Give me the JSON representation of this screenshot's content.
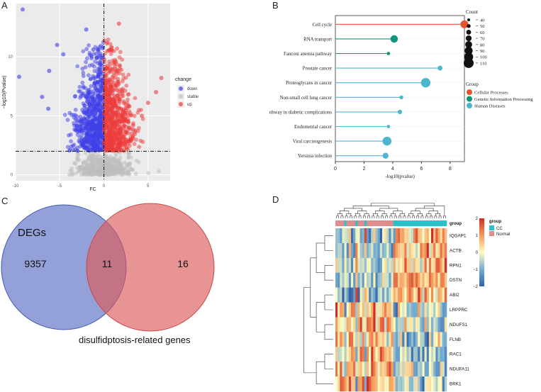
{
  "panel_labels": {
    "a": "A",
    "b": "B",
    "c": "C",
    "d": "D"
  },
  "chart_data": [
    {
      "type": "scatter",
      "name": "volcano",
      "xlabel": "FC",
      "ylabel": "−log10(Pvalue)",
      "xlim": [
        -10,
        7.5
      ],
      "ylim": [
        -0.5,
        14.5
      ],
      "xticks": [
        -10,
        -5,
        0,
        5
      ],
      "yticks": [
        0,
        5,
        10
      ],
      "xtick_labels": [
        "-10",
        "-5",
        "0",
        "5"
      ],
      "ytick_labels": [
        "0",
        "5",
        "10"
      ],
      "threshold_y": 2,
      "threshold_x": 0,
      "legend_title": "change",
      "series": [
        {
          "name": "down",
          "color": "#3f3fe8"
        },
        {
          "name": "stable",
          "color": "#bdbdbd"
        },
        {
          "name": "up",
          "color": "#ee3b3b"
        }
      ],
      "outliers": [
        {
          "x": -9.2,
          "y": 14.0,
          "series": "down"
        },
        {
          "x": -9.6,
          "y": 8.3,
          "series": "down"
        },
        {
          "x": -5.3,
          "y": 11.0,
          "series": "down"
        },
        {
          "x": -4.6,
          "y": 10.2,
          "series": "down"
        },
        {
          "x": -6.2,
          "y": 8.8,
          "series": "down"
        },
        {
          "x": -2.0,
          "y": 12.3,
          "series": "down"
        },
        {
          "x": -1.2,
          "y": 10.6,
          "series": "down"
        },
        {
          "x": -7.0,
          "y": 6.6,
          "series": "down"
        },
        {
          "x": -6.3,
          "y": 5.6,
          "series": "down"
        },
        {
          "x": 1.7,
          "y": 12.8,
          "series": "up"
        },
        {
          "x": 6.5,
          "y": 8.2,
          "series": "up"
        },
        {
          "x": 5.9,
          "y": 7.0,
          "series": "up"
        },
        {
          "x": 5.0,
          "y": 6.1,
          "series": "up"
        },
        {
          "x": 4.3,
          "y": 5.0,
          "series": "up"
        },
        {
          "x": 3.3,
          "y": 4.2,
          "series": "up"
        }
      ]
    },
    {
      "type": "lollipop",
      "name": "kegg",
      "categories": [
        "Cell cycle",
        "RNA transport",
        "Fanconi anemia pathway",
        "Prostate cancer",
        "Proteoglycans in cancer",
        "Non-small cell lung cancer",
        "AGE-RAGE signaling pathway in diabetic complications",
        "Endometrial cancer",
        "Viral carcinogenesis",
        "Yersinia infection"
      ],
      "values": [
        9.0,
        4.1,
        3.7,
        7.3,
        6.3,
        4.6,
        4.5,
        3.7,
        3.6,
        3.5
      ],
      "counts": [
        90,
        85,
        45,
        60,
        105,
        50,
        55,
        45,
        100,
        70
      ],
      "groups": [
        "Cellular Processes",
        "Genetic Information Processing",
        "Genetic Information Processing",
        "Human Diseases",
        "Human Diseases",
        "Human Diseases",
        "Human Diseases",
        "Human Diseases",
        "Human Diseases",
        "Human Diseases"
      ],
      "xlabel": "-log10(pvalue)",
      "xlim": [
        0,
        9
      ],
      "xticks": [
        0,
        2,
        4,
        6,
        8
      ],
      "xtick_labels": [
        "0",
        "2",
        "4",
        "6",
        "8"
      ],
      "count_legend_title": "Count",
      "count_legend": [
        40,
        50,
        60,
        70,
        80,
        90,
        100,
        110
      ],
      "count_legend_labels": [
        "40",
        "50",
        "60",
        "70",
        "80",
        "90",
        "100",
        "110"
      ],
      "group_legend_title": "Group",
      "group_legend": [
        {
          "name": "Cellular Processes",
          "color": "#e4572e"
        },
        {
          "name": "Genetic Information Processing",
          "color": "#12967a"
        },
        {
          "name": "Human Diseases",
          "color": "#4cb6cf"
        }
      ]
    },
    {
      "type": "venn",
      "name": "venn",
      "sets": [
        {
          "label": "DEGs",
          "only": 9357,
          "only_label": "9357",
          "color": "#5b6fc4"
        },
        {
          "label": "disulfidptosis-related genes",
          "only": 16,
          "only_label": "16",
          "color": "#dd5a5a"
        }
      ],
      "intersection": 11,
      "intersection_label": "11"
    },
    {
      "type": "heatmap",
      "name": "expression-heatmap",
      "rows": [
        "IQGAP1",
        "ACTB",
        "RPN1",
        "DSTN",
        "ABI2",
        "LRPPRC",
        "NDUFS1",
        "FLNB",
        "RAC1",
        "NDUFA11",
        "BRK1"
      ],
      "annotation_label": "group",
      "groups": [
        {
          "name": "CC",
          "color": "#2bc1c9"
        },
        {
          "name": "Normal",
          "color": "#e08c8c"
        }
      ],
      "colorbar_ticks": [
        2,
        1,
        0,
        -1,
        -2
      ],
      "colorbar_labels": [
        "2",
        "1",
        "0",
        "−1",
        "−2"
      ],
      "legend_title": "group"
    }
  ]
}
